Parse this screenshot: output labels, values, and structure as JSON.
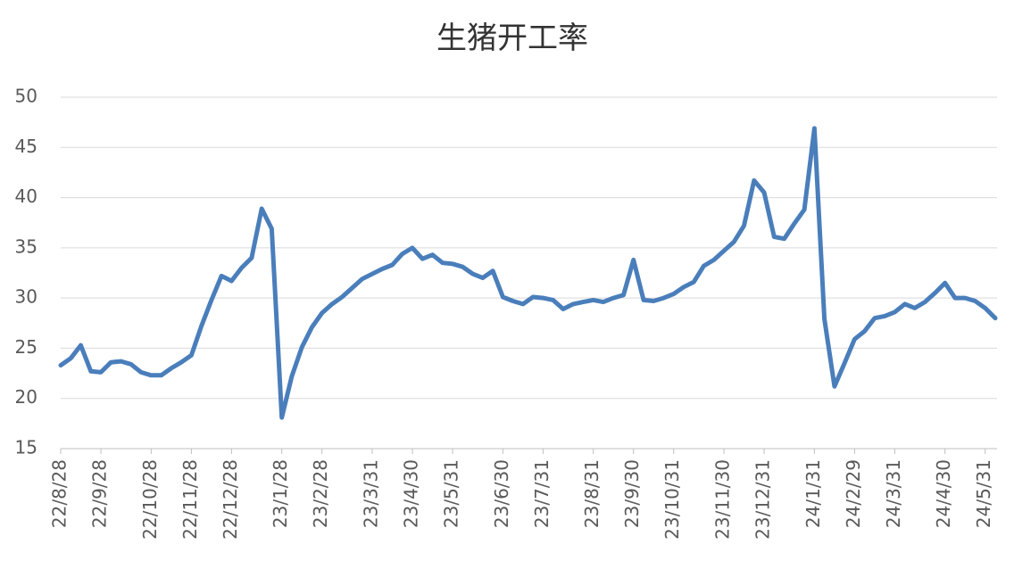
{
  "chart_data": {
    "type": "line",
    "title": "生猪开工率",
    "categories": [
      "22/8/28",
      null,
      null,
      null,
      "22/9/28",
      null,
      null,
      null,
      null,
      "22/10/28",
      null,
      null,
      null,
      "22/11/28",
      null,
      null,
      null,
      "22/12/28",
      null,
      null,
      null,
      null,
      "23/1/28",
      null,
      null,
      null,
      "23/2/28",
      null,
      null,
      null,
      null,
      "23/3/31",
      null,
      null,
      null,
      "23/4/30",
      null,
      null,
      null,
      "23/5/31",
      null,
      null,
      null,
      null,
      "23/6/30",
      null,
      null,
      null,
      "23/7/31",
      null,
      null,
      null,
      null,
      "23/8/31",
      null,
      null,
      null,
      "23/9/30",
      null,
      null,
      null,
      "23/10/31",
      null,
      null,
      null,
      null,
      "23/11/30",
      null,
      null,
      null,
      "23/12/31",
      null,
      null,
      null,
      null,
      "24/1/31",
      null,
      null,
      null,
      "24/2/29",
      null,
      null,
      null,
      "24/3/31",
      null,
      null,
      null,
      null,
      "24/4/30",
      null,
      null,
      null,
      "24/5/31",
      null
    ],
    "values": [
      23.3,
      24.0,
      25.3,
      22.7,
      22.6,
      23.6,
      23.7,
      23.4,
      22.6,
      22.3,
      22.3,
      23.0,
      23.6,
      24.3,
      27.2,
      29.8,
      32.2,
      31.7,
      33.0,
      34.0,
      38.9,
      36.9,
      18.1,
      22.2,
      25.1,
      27.1,
      28.5,
      29.4,
      30.1,
      31.0,
      31.9,
      32.4,
      32.9,
      33.3,
      34.4,
      35.0,
      33.9,
      34.3,
      33.5,
      33.4,
      33.1,
      32.4,
      32.0,
      32.7,
      30.1,
      29.7,
      29.4,
      30.1,
      30.0,
      29.8,
      28.9,
      29.4,
      29.6,
      29.8,
      29.6,
      30.0,
      30.3,
      33.8,
      29.8,
      29.7,
      30.0,
      30.4,
      31.1,
      31.6,
      33.2,
      33.8,
      34.7,
      35.6,
      37.2,
      41.7,
      40.5,
      36.1,
      35.9,
      37.4,
      38.8,
      46.9,
      27.9,
      21.2,
      23.5,
      25.9,
      26.7,
      28.0,
      28.2,
      28.6,
      29.4,
      29.0,
      29.6,
      30.5,
      31.5,
      30.0,
      30.0,
      29.7,
      29.0,
      28.0
    ],
    "color": "#4a7ebb",
    "ylim": [
      15,
      50
    ],
    "yticks": [
      15,
      20,
      25,
      30,
      35,
      40,
      45,
      50
    ],
    "grid": true
  }
}
